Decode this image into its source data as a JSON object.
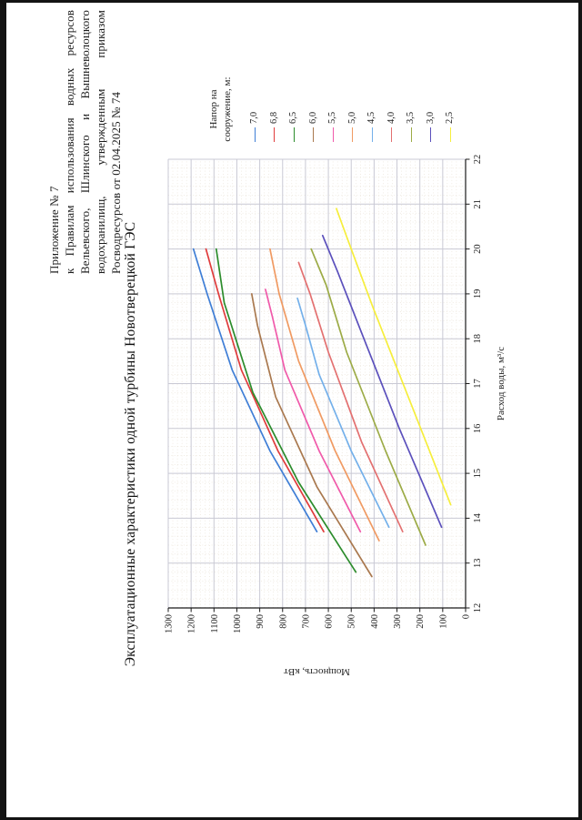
{
  "document": {
    "header_lines": [
      "Приложение № 7",
      "к Правилам использования водных ресурсов",
      "Вельевского, Шлинского и Вышневолоцкого",
      "водохранилищ, утвержденным приказом",
      "Росводресурсов от 02.04.2025 № 74"
    ]
  },
  "chart_data": {
    "type": "line",
    "title": "Эксплуатационные характеристики одной турбины Новотверецкой ГЭС",
    "xlabel": "Расход воды, м³/с",
    "ylabel": "Мощность, кВт",
    "xlim": [
      12,
      22
    ],
    "ylim": [
      0,
      1300
    ],
    "x_tick_step": 1,
    "y_tick_step": 100,
    "grid": true,
    "minor_grid": true,
    "legend_position": "right",
    "legend_title_lines": [
      "Напор на",
      "сооружение, м:"
    ],
    "page_rotation_deg": -90,
    "colors": {
      "major_grid": "#c9c9d4",
      "minor_grid": "#d3c5ae",
      "axis": "#1a1a1a"
    },
    "series": [
      {
        "name": "7,0",
        "head_m": 7.0,
        "color": "#3f7ed6",
        "points": [
          [
            13.7,
            650
          ],
          [
            15.5,
            855
          ],
          [
            17.3,
            1020
          ],
          [
            19.0,
            1130
          ],
          [
            20.0,
            1190
          ]
        ]
      },
      {
        "name": "6,8",
        "head_m": 6.8,
        "color": "#e03c3c",
        "points": [
          [
            13.7,
            620
          ],
          [
            15.5,
            820
          ],
          [
            17.3,
            980
          ],
          [
            19.0,
            1080
          ],
          [
            20.0,
            1135
          ]
        ]
      },
      {
        "name": "6,5",
        "head_m": 6.5,
        "color": "#2c8c2c",
        "points": [
          [
            12.8,
            480
          ],
          [
            14.8,
            730
          ],
          [
            16.8,
            930
          ],
          [
            18.8,
            1055
          ],
          [
            20.0,
            1090
          ]
        ]
      },
      {
        "name": "6,0",
        "head_m": 6.0,
        "color": "#a9784e",
        "points": [
          [
            12.7,
            410
          ],
          [
            14.7,
            650
          ],
          [
            16.7,
            830
          ],
          [
            18.3,
            910
          ],
          [
            19.0,
            935
          ]
        ]
      },
      {
        "name": "5,5",
        "head_m": 5.5,
        "color": "#f05aaa",
        "points": [
          [
            13.7,
            460
          ],
          [
            15.5,
            640
          ],
          [
            17.3,
            790
          ],
          [
            18.5,
            845
          ],
          [
            19.1,
            875
          ]
        ]
      },
      {
        "name": "5,0",
        "head_m": 5.0,
        "color": "#f09a62",
        "points": [
          [
            13.5,
            378
          ],
          [
            15.5,
            570
          ],
          [
            17.5,
            730
          ],
          [
            19.0,
            815
          ],
          [
            20.0,
            855
          ]
        ]
      },
      {
        "name": "4,5",
        "head_m": 4.5,
        "color": "#74b0ea",
        "points": [
          [
            13.8,
            335
          ],
          [
            15.5,
            500
          ],
          [
            17.2,
            640
          ],
          [
            18.3,
            700
          ],
          [
            18.9,
            735
          ]
        ]
      },
      {
        "name": "4,0",
        "head_m": 4.0,
        "color": "#e37070",
        "points": [
          [
            13.7,
            275
          ],
          [
            15.7,
            455
          ],
          [
            17.7,
            600
          ],
          [
            19.0,
            680
          ],
          [
            19.7,
            730
          ]
        ]
      },
      {
        "name": "3,5",
        "head_m": 3.5,
        "color": "#9cab46",
        "points": [
          [
            13.4,
            175
          ],
          [
            15.5,
            350
          ],
          [
            17.7,
            520
          ],
          [
            19.2,
            610
          ],
          [
            20.0,
            675
          ]
        ]
      },
      {
        "name": "3,0",
        "head_m": 3.0,
        "color": "#5b50bc",
        "points": [
          [
            13.8,
            105
          ],
          [
            16.0,
            290
          ],
          [
            18.2,
            460
          ],
          [
            19.5,
            560
          ],
          [
            20.3,
            625
          ]
        ]
      },
      {
        "name": "2,5",
        "head_m": 2.5,
        "color": "#f6ee3c",
        "points": [
          [
            14.3,
            65
          ],
          [
            16.5,
            235
          ],
          [
            18.7,
            405
          ],
          [
            20.0,
            500
          ],
          [
            20.9,
            565
          ]
        ]
      }
    ]
  }
}
